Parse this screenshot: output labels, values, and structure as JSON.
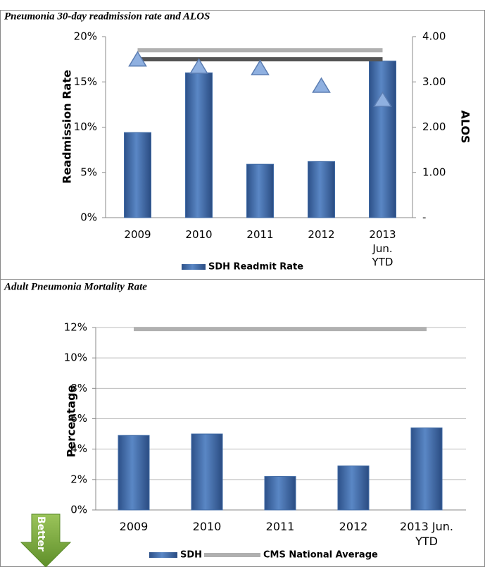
{
  "chart_data": [
    {
      "type": "combo",
      "title": "Pneumonia 30-day readmission rate and ALOS",
      "y_label": "Readmission Rate",
      "y2_label": "ALOS",
      "categories": [
        "2009",
        "2010",
        "2011",
        "2012",
        "2013 Jun. YTD"
      ],
      "ylim": [
        0,
        20
      ],
      "yticks": [
        {
          "value": 0,
          "label": "0%"
        },
        {
          "value": 5,
          "label": "5%"
        },
        {
          "value": 10,
          "label": "10%"
        },
        {
          "value": 15,
          "label": "15%"
        },
        {
          "value": 20,
          "label": "20%"
        }
      ],
      "y2lim": [
        0,
        4
      ],
      "y2ticks": [
        {
          "value": 0,
          "label": "-"
        },
        {
          "value": 1,
          "label": "1.00"
        },
        {
          "value": 2,
          "label": "2.00"
        },
        {
          "value": 3,
          "label": "3.00"
        },
        {
          "value": 4,
          "label": "4.00"
        }
      ],
      "grid": false,
      "series": [
        {
          "name": "SDH Readmit Rate",
          "type": "bar",
          "color": "#3f6aa5",
          "values": [
            9.4,
            16.0,
            5.9,
            6.2,
            17.3
          ]
        },
        {
          "type": "line",
          "axis": "y2",
          "color": "#b0b0b0",
          "values": [
            3.7,
            3.7,
            3.7,
            3.7,
            3.7
          ]
        },
        {
          "type": "line",
          "axis": "y2",
          "color": "#555555",
          "values": [
            3.5,
            3.5,
            3.5,
            3.5,
            3.5
          ]
        },
        {
          "type": "marker",
          "axis": "y2",
          "color": "#8fb0e0",
          "values": [
            3.49,
            3.33,
            3.3,
            2.91,
            2.6
          ]
        }
      ]
    },
    {
      "type": "combo",
      "title": "Adult Pneumonia Mortality Rate",
      "y_label": "Percentage",
      "annotation": "Better",
      "categories": [
        "2009",
        "2010",
        "2011",
        "2012",
        "2013 Jun. YTD"
      ],
      "ylim": [
        0,
        12
      ],
      "yticks": [
        {
          "value": 0,
          "label": "0%"
        },
        {
          "value": 2,
          "label": "2%"
        },
        {
          "value": 4,
          "label": "4%"
        },
        {
          "value": 6,
          "label": "6%"
        },
        {
          "value": 8,
          "label": "8%"
        },
        {
          "value": 10,
          "label": "10%"
        },
        {
          "value": 12,
          "label": "12%"
        }
      ],
      "grid": true,
      "series": [
        {
          "name": "SDH",
          "type": "bar",
          "color": "#3f6aa5",
          "values": [
            4.9,
            5.0,
            2.2,
            2.9,
            5.4
          ]
        },
        {
          "name": "CMS National Average",
          "type": "line",
          "color": "#b0b0b0",
          "values": [
            11.9,
            11.9,
            11.9,
            11.9,
            11.9
          ]
        }
      ]
    }
  ]
}
